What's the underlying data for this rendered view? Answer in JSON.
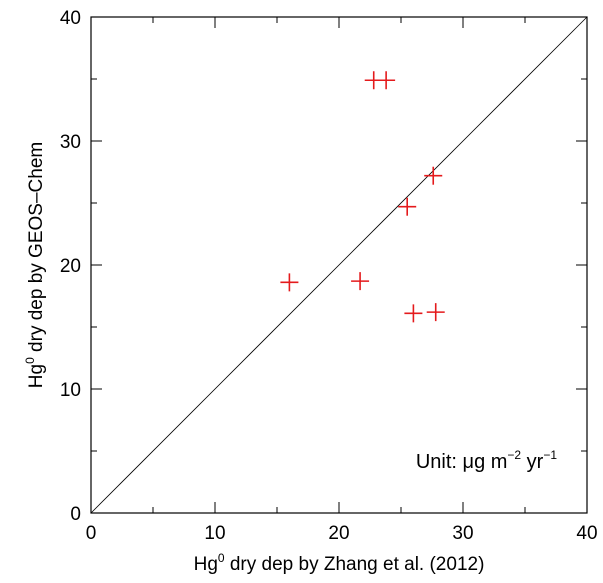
{
  "chart_data": {
    "type": "scatter",
    "xlabel": {
      "prefix": "Hg",
      "superscript": "0",
      "suffix": " dry dep by Zhang et al. (2012)"
    },
    "ylabel": {
      "prefix": "Hg",
      "superscript": "0",
      "suffix": " dry dep by GEOS–Chem"
    },
    "xlim": [
      0,
      40
    ],
    "ylim": [
      0,
      40
    ],
    "x_ticks": [
      "0",
      "10",
      "20",
      "30",
      "40"
    ],
    "y_ticks": [
      "0",
      "10",
      "20",
      "30",
      "40"
    ],
    "reference_line": "1:1",
    "grid": false,
    "marker": "plus",
    "marker_color": "#e41a1c",
    "axis_color": "#000000",
    "annotation": {
      "unit_label": "Unit: μg m",
      "exp1": "−2",
      "mid": " yr",
      "exp2": "−1"
    },
    "points": [
      {
        "x": 22.8,
        "y": 34.9
      },
      {
        "x": 23.8,
        "y": 34.9
      },
      {
        "x": 27.6,
        "y": 27.2
      },
      {
        "x": 25.5,
        "y": 24.7
      },
      {
        "x": 16.0,
        "y": 18.6
      },
      {
        "x": 21.7,
        "y": 18.7
      },
      {
        "x": 26.0,
        "y": 16.1
      },
      {
        "x": 27.8,
        "y": 16.2
      }
    ]
  }
}
